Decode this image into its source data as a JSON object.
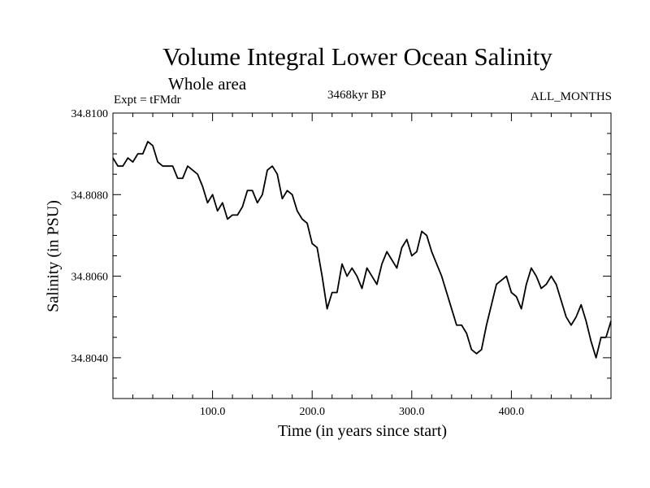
{
  "chart_data": {
    "type": "line",
    "title": "Volume Integral Lower Ocean Salinity",
    "subtitle": "Whole area",
    "experiment": "Expt = tFMdr",
    "period": "3468kyr BP",
    "months": "ALL_MONTHS",
    "xlabel": "Time (in years since start)",
    "ylabel": "Salinity (in PSU)",
    "xlim": [
      0,
      500
    ],
    "ylim": [
      34.803,
      34.81
    ],
    "x_ticks": [
      100,
      200,
      300,
      400
    ],
    "x_tick_labels": [
      "100.0",
      "200.0",
      "300.0",
      "400.0"
    ],
    "y_ticks": [
      34.804,
      34.806,
      34.808,
      34.81
    ],
    "y_tick_labels": [
      "34.8040",
      "34.8060",
      "34.8080",
      "34.8100"
    ],
    "grid": false,
    "series": [
      {
        "name": "Salinity",
        "x": [
          0,
          5,
          10,
          15,
          20,
          25,
          30,
          35,
          40,
          45,
          50,
          55,
          60,
          65,
          70,
          75,
          80,
          85,
          90,
          95,
          100,
          105,
          110,
          115,
          120,
          125,
          130,
          135,
          140,
          145,
          150,
          155,
          160,
          165,
          170,
          175,
          180,
          185,
          190,
          195,
          200,
          205,
          210,
          215,
          220,
          225,
          230,
          235,
          240,
          245,
          250,
          255,
          260,
          265,
          270,
          275,
          280,
          285,
          290,
          295,
          300,
          305,
          310,
          315,
          320,
          325,
          330,
          335,
          340,
          345,
          350,
          355,
          360,
          365,
          370,
          375,
          380,
          385,
          390,
          395,
          400,
          405,
          410,
          415,
          420,
          425,
          430,
          435,
          440,
          445,
          450,
          455,
          460,
          465,
          470,
          475,
          480,
          485,
          490,
          495,
          500
        ],
        "values": [
          34.8089,
          34.8087,
          34.8087,
          34.8089,
          34.8088,
          34.809,
          34.809,
          34.8093,
          34.8092,
          34.8088,
          34.8087,
          34.8087,
          34.8087,
          34.8084,
          34.8084,
          34.8087,
          34.8086,
          34.8085,
          34.8082,
          34.8078,
          34.808,
          34.8076,
          34.8078,
          34.8074,
          34.8075,
          34.8075,
          34.8077,
          34.8081,
          34.8081,
          34.8078,
          34.808,
          34.8086,
          34.8087,
          34.8085,
          34.8079,
          34.8081,
          34.808,
          34.8076,
          34.8074,
          34.8073,
          34.8068,
          34.8067,
          34.806,
          34.8052,
          34.8056,
          34.8056,
          34.8063,
          34.806,
          34.8062,
          34.806,
          34.8057,
          34.8062,
          34.806,
          34.8058,
          34.8063,
          34.8066,
          34.8064,
          34.8062,
          34.8067,
          34.8069,
          34.8065,
          34.8066,
          34.8071,
          34.807,
          34.8066,
          34.8063,
          34.806,
          34.8056,
          34.8052,
          34.8048,
          34.8048,
          34.8046,
          34.8042,
          34.8041,
          34.8042,
          34.8048,
          34.8053,
          34.8058,
          34.8059,
          34.806,
          34.8056,
          34.8055,
          34.8052,
          34.8058,
          34.8062,
          34.806,
          34.8057,
          34.8058,
          34.806,
          34.8058,
          34.8054,
          34.805,
          34.8048,
          34.805,
          34.8053,
          34.8049,
          34.8044,
          34.804,
          34.8045,
          34.8045,
          34.8049
        ]
      }
    ]
  }
}
